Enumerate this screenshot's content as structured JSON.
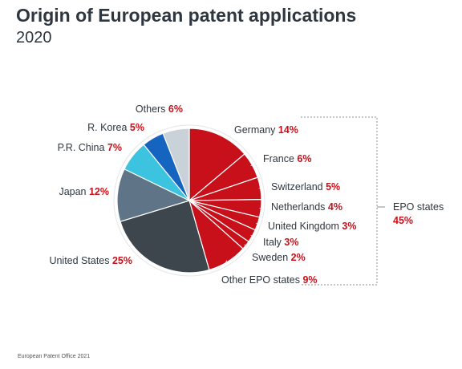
{
  "header": {
    "title": "Origin of European patent applications",
    "subtitle": "2020"
  },
  "footer": {
    "source": "European Patent Office 2021"
  },
  "chart_data": {
    "type": "pie",
    "title": "Origin of European patent applications",
    "subtitle": "2020",
    "slices": [
      {
        "name": "Germany",
        "value": 14,
        "label": "14%",
        "color": "#c8101a",
        "group": "EPO"
      },
      {
        "name": "France",
        "value": 6,
        "label": "6%",
        "color": "#c8101a",
        "group": "EPO"
      },
      {
        "name": "Switzerland",
        "value": 5,
        "label": "5%",
        "color": "#c8101a",
        "group": "EPO"
      },
      {
        "name": "Netherlands",
        "value": 4,
        "label": "4%",
        "color": "#c8101a",
        "group": "EPO"
      },
      {
        "name": "United Kingdom",
        "value": 3,
        "label": "3%",
        "color": "#c8101a",
        "group": "EPO"
      },
      {
        "name": "Italy",
        "value": 3,
        "label": "3%",
        "color": "#c8101a",
        "group": "EPO"
      },
      {
        "name": "Sweden",
        "value": 2,
        "label": "2%",
        "color": "#c8101a",
        "group": "EPO"
      },
      {
        "name": "Other EPO states",
        "value": 9,
        "label": "9%",
        "color": "#c8101a",
        "group": "EPO"
      },
      {
        "name": "United States",
        "value": 25,
        "label": "25%",
        "color": "#3d464d"
      },
      {
        "name": "Japan",
        "value": 12,
        "label": "12%",
        "color": "#5f7587"
      },
      {
        "name": "P.R. China",
        "value": 7,
        "label": "7%",
        "color": "#3cc3df"
      },
      {
        "name": "R. Korea",
        "value": 5,
        "label": "5%",
        "color": "#1565c0"
      },
      {
        "name": "Others",
        "value": 6,
        "label": "6%",
        "color": "#c9d1d9"
      }
    ],
    "group_annotation": {
      "label": "EPO states",
      "value": "45%"
    }
  }
}
